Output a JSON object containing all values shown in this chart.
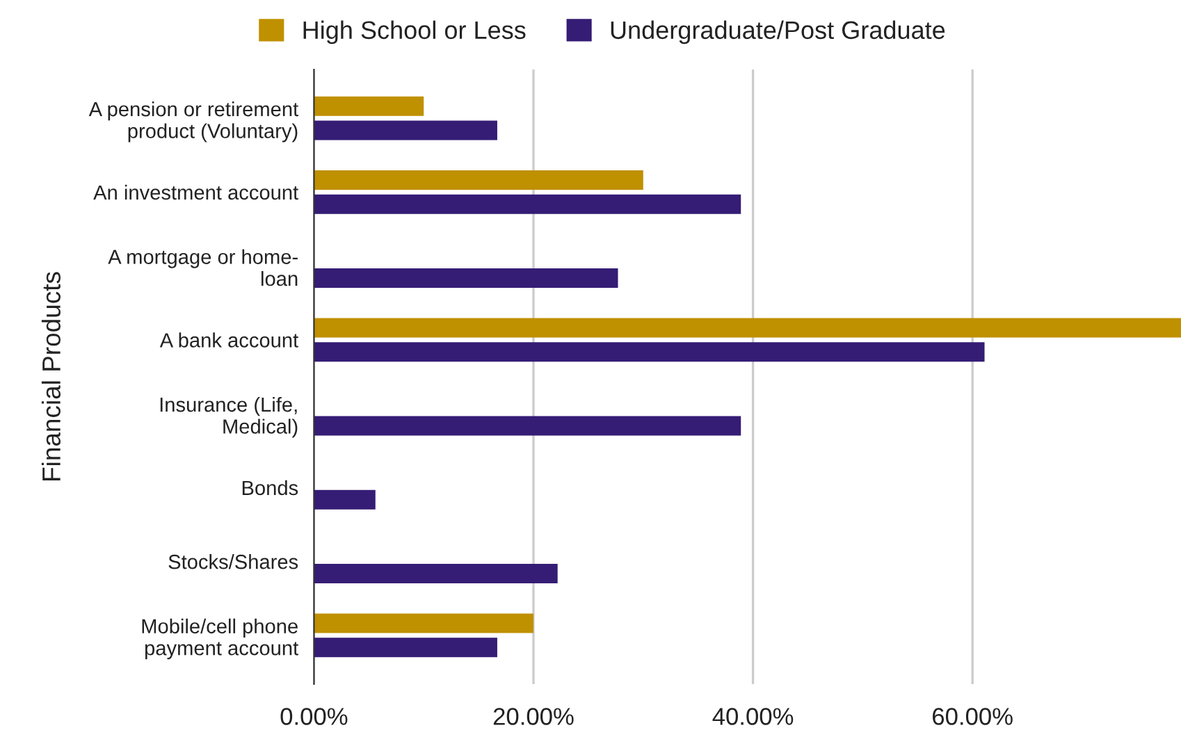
{
  "chart_data": {
    "type": "bar",
    "orientation": "horizontal",
    "ylabel": "Financial Products",
    "categories": [
      "A pension or retirement\nproduct (Voluntary)",
      "An investment account",
      "A mortgage or home-\nloan",
      "A bank account",
      "Insurance (Life,\nMedical)",
      "Bonds",
      "Stocks/Shares",
      "Mobile/cell phone\npayment account"
    ],
    "series": [
      {
        "name": "High School or Less",
        "color": "#bf9000",
        "values": [
          10,
          30,
          null,
          79,
          null,
          null,
          null,
          20
        ]
      },
      {
        "name": "Undergraduate/Post Graduate",
        "color": "#351c75",
        "values": [
          16.7,
          38.9,
          27.7,
          61.1,
          38.9,
          5.6,
          22.2,
          16.7
        ]
      }
    ],
    "xlim": [
      0,
      79
    ],
    "xticks": [
      {
        "value": 0,
        "label": "0.00%"
      },
      {
        "value": 20,
        "label": "20.00%"
      },
      {
        "value": 40,
        "label": "40.00%"
      },
      {
        "value": 60,
        "label": "60.00%"
      }
    ],
    "grid": "x",
    "legend": "top"
  }
}
